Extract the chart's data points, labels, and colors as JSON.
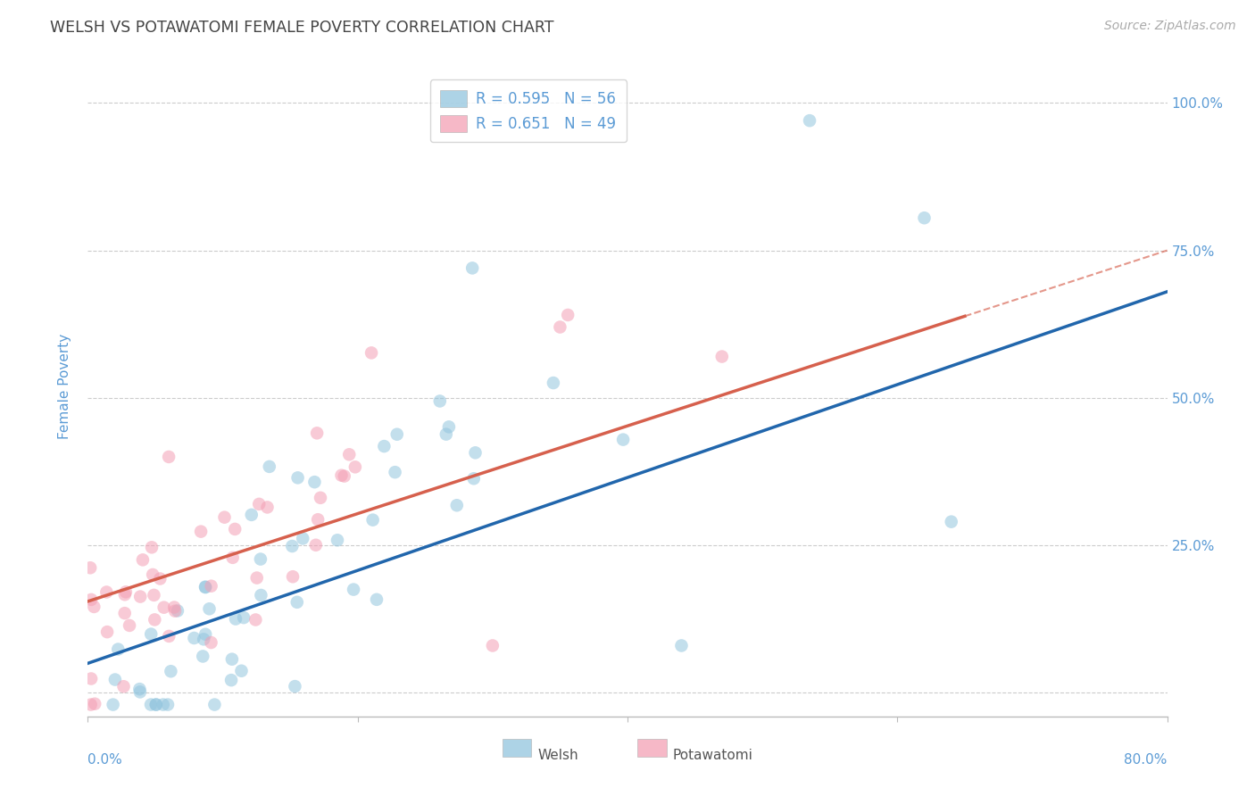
{
  "title": "WELSH VS POTAWATOMI FEMALE POVERTY CORRELATION CHART",
  "source": "Source: ZipAtlas.com",
  "ylabel": "Female Poverty",
  "welsh_R": 0.595,
  "welsh_N": 56,
  "potawatomi_R": 0.651,
  "potawatomi_N": 49,
  "welsh_scatter_color": "#92c5de",
  "potawatomi_scatter_color": "#f4a0b5",
  "welsh_line_color": "#2166ac",
  "potawatomi_line_color": "#d6604d",
  "bg_color": "#ffffff",
  "grid_color": "#cccccc",
  "legend_label_welsh": "Welsh",
  "legend_label_potawatomi": "Potawatomi",
  "title_color": "#444444",
  "axis_label_color": "#5b9bd5",
  "source_color": "#aaaaaa",
  "xlim": [
    0.0,
    0.8
  ],
  "ylim": [
    -0.04,
    1.08
  ],
  "ytick_positions": [
    0.0,
    0.25,
    0.5,
    0.75,
    1.0
  ],
  "ytick_labels": [
    "",
    "25.0%",
    "50.0%",
    "75.0%",
    "100.0%"
  ],
  "xtick_positions": [
    0.0,
    0.2,
    0.4,
    0.6,
    0.8
  ],
  "welsh_line_x0": 0.0,
  "welsh_line_y0": 0.05,
  "welsh_line_x1": 0.8,
  "welsh_line_y1": 0.68,
  "pota_line_x0": 0.0,
  "pota_line_y0": 0.155,
  "pota_line_solid_end": 0.65,
  "pota_line_x1": 0.8,
  "pota_line_y1": 0.75
}
